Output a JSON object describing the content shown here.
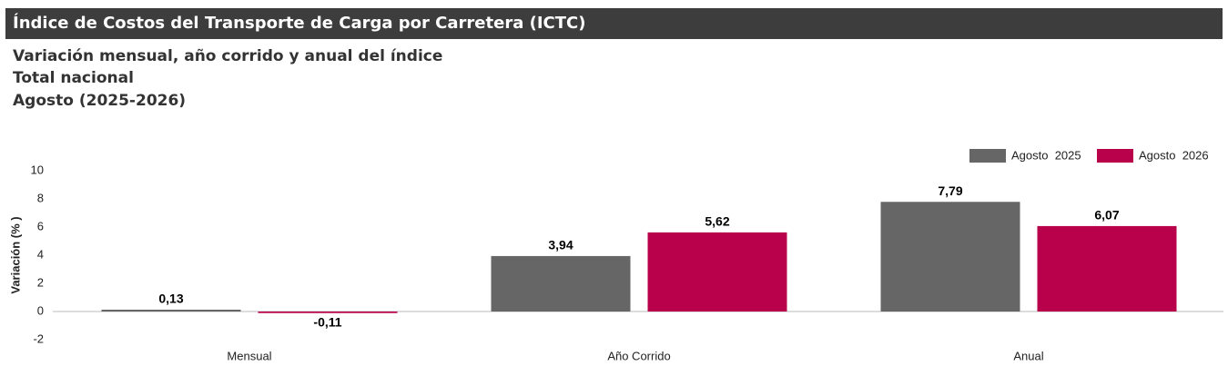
{
  "chart_data": {
    "type": "bar",
    "title": "Índice de Costos del Transporte de Carga por Carretera (ICTC)",
    "subtitles": [
      "Variación mensual, año corrido y anual del índice",
      "Total nacional",
      "Agosto (2025-2026)"
    ],
    "y_label": "Variación (% )",
    "categories": [
      "Mensual",
      "Año Corrido",
      "Anual"
    ],
    "series": [
      {
        "name": "Agosto  2025",
        "color": "#666666",
        "values": [
          0.13,
          3.94,
          7.79
        ],
        "value_labels": [
          "0,13",
          "3,94",
          "7,79"
        ]
      },
      {
        "name": "Agosto  2026",
        "color": "#b8004b",
        "values": [
          -0.11,
          5.62,
          6.07
        ],
        "value_labels": [
          "-0,11",
          "5,62",
          "6,07"
        ]
      }
    ],
    "ylim": [
      -2,
      10
    ],
    "yticks": [
      -2,
      0,
      2,
      4,
      6,
      8,
      10
    ],
    "grid": false,
    "legend": "top-right"
  }
}
